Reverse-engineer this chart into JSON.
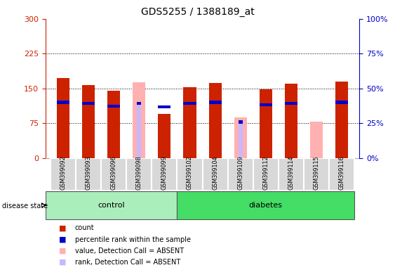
{
  "title": "GDS5255 / 1388189_at",
  "samples": [
    "GSM399092",
    "GSM399093",
    "GSM399096",
    "GSM399098",
    "GSM399099",
    "GSM399102",
    "GSM399104",
    "GSM399109",
    "GSM399112",
    "GSM399114",
    "GSM399115",
    "GSM399116"
  ],
  "count_values": [
    172,
    157,
    145,
    0,
    95,
    152,
    162,
    0,
    148,
    160,
    0,
    165
  ],
  "absent_value_bars": [
    0,
    0,
    0,
    163,
    0,
    0,
    0,
    88,
    0,
    0,
    78,
    0
  ],
  "absent_rank_bars": [
    0,
    0,
    0,
    118,
    0,
    0,
    0,
    78,
    0,
    0,
    0,
    0
  ],
  "blue_positions": [
    120,
    118,
    112,
    0,
    110,
    118,
    120,
    0,
    115,
    118,
    0,
    120
  ],
  "blue_absent_pos": [
    0,
    0,
    0,
    118,
    0,
    0,
    0,
    78,
    0,
    0,
    0,
    0
  ],
  "control_count": 5,
  "diabetes_count": 7,
  "ylim_left": [
    0,
    300
  ],
  "yticks_left": [
    0,
    75,
    150,
    225,
    300
  ],
  "yticks_right": [
    0,
    25,
    50,
    75,
    100
  ],
  "grid_lines": [
    75,
    150,
    225
  ],
  "left_axis_color": "#cc2200",
  "right_axis_color": "#0000cc",
  "bar_color_red": "#cc2200",
  "bar_color_absent_val": "#ffb0b0",
  "bar_color_absent_rank": "#c8b8ff",
  "bar_color_blue": "#0000cc",
  "label_area_bg": "#cccccc",
  "control_bg": "#aaeebb",
  "diabetes_bg": "#44dd66",
  "bar_width": 0.5
}
